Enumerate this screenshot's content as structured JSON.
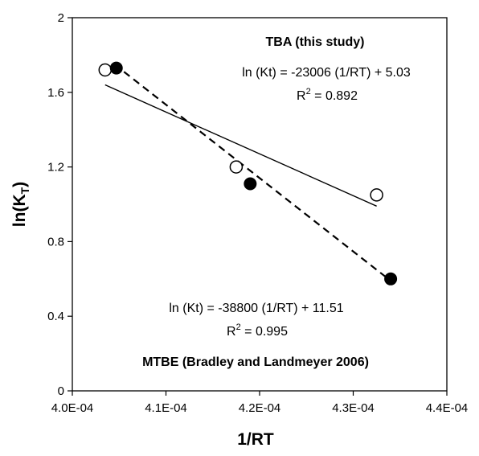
{
  "chart_data": {
    "type": "scatter",
    "xlabel": "1/RT",
    "ylabel": "ln(K",
    "ylabel_sub": "T",
    "ylabel_close": ")",
    "xlim": [
      0.0004,
      0.00044
    ],
    "ylim": [
      0,
      2
    ],
    "x_ticks": [
      0.0004,
      0.00041,
      0.00042,
      0.00043,
      0.00044
    ],
    "x_tick_labels": [
      "4.0E-04",
      "4.1E-04",
      "4.2E-04",
      "4.3E-04",
      "4.4E-04"
    ],
    "y_ticks": [
      0,
      0.4,
      0.8,
      1.2,
      1.6,
      2
    ],
    "y_tick_labels": [
      "0",
      "0.4",
      "0.8",
      "1.2",
      "1.6",
      "2"
    ],
    "grid": false,
    "series": [
      {
        "name": "TBA (this study)",
        "marker": "open-circle",
        "line_style": "solid",
        "points": [
          {
            "x": 0.0004035,
            "y": 1.72
          },
          {
            "x": 0.0004175,
            "y": 1.2
          },
          {
            "x": 0.0004325,
            "y": 1.05
          }
        ],
        "fit_line": [
          {
            "x": 0.0004035,
            "y": 1.64
          },
          {
            "x": 0.0004325,
            "y": 0.99
          }
        ],
        "equation": "ln (Kt) = -23006 (1/RT) + 5.03",
        "r2_label": "R",
        "r2_exp": "2",
        "r2_value": " = 0.892"
      },
      {
        "name": "MTBE (Bradley and Landmeyer 2006)",
        "marker": "filled-circle",
        "line_style": "dashed",
        "points": [
          {
            "x": 0.0004047,
            "y": 1.73
          },
          {
            "x": 0.000419,
            "y": 1.11
          },
          {
            "x": 0.000434,
            "y": 0.6
          }
        ],
        "fit_line": [
          {
            "x": 0.0004045,
            "y": 1.75
          },
          {
            "x": 0.000434,
            "y": 0.59
          }
        ],
        "equation": "ln (Kt) = -38800 (1/RT) + 11.51",
        "r2_label": "R",
        "r2_exp": "2",
        "r2_value": " = 0.995"
      }
    ]
  }
}
